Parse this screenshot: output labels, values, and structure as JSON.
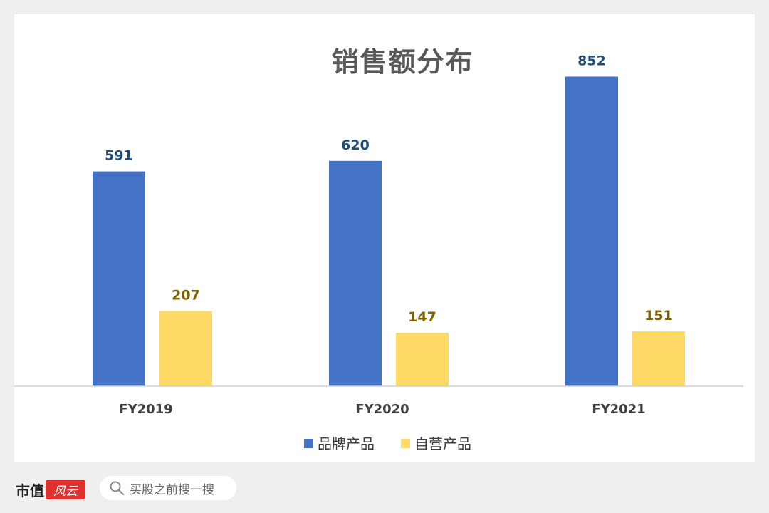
{
  "chart_data": {
    "type": "bar",
    "title": "销售额分布",
    "categories": [
      "FY2019",
      "FY2020",
      "FY2021"
    ],
    "series": [
      {
        "name": "品牌产品",
        "color": "#4472C4",
        "label_color": "#1F4E79",
        "values": [
          591,
          620,
          852
        ]
      },
      {
        "name": "自营产品",
        "color": "#FFD966",
        "label_color": "#7F6000",
        "values": [
          207,
          147,
          151
        ]
      }
    ],
    "ylim": [
      0,
      1000
    ],
    "grid": false,
    "legend": "bottom"
  },
  "footer": {
    "brand": "市值",
    "brand_logo": "风云",
    "search_placeholder": "买股之前搜一搜"
  }
}
